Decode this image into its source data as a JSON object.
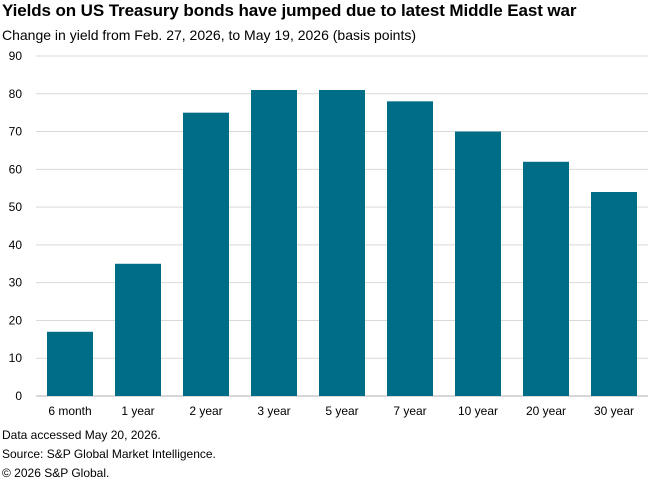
{
  "header": {
    "title": "Yields on US Treasury bonds have jumped due to latest Middle East war",
    "subtitle": "Change in yield from Feb. 27, 2026, to May 19, 2026 (basis points)"
  },
  "footer": {
    "note": "Data accessed May 20, 2026.",
    "source": "Source: S&P Global Market Intelligence.",
    "copyright": "© 2026 S&P Global."
  },
  "colors": {
    "bar": "#006d87",
    "grid": "#d9d9d9"
  },
  "chart_data": {
    "type": "bar",
    "categories": [
      "6 month",
      "1 year",
      "2 year",
      "3 year",
      "5 year",
      "7 year",
      "10 year",
      "20 year",
      "30 year"
    ],
    "values": [
      17,
      35,
      75,
      81,
      81,
      78,
      70,
      62,
      54
    ],
    "title": "Yields on US Treasury bonds have jumped due to latest Middle East war",
    "subtitle": "Change in yield from Feb. 27, 2026, to May 19, 2026 (basis points)",
    "xlabel": "",
    "ylabel": "",
    "ylim": [
      0,
      90
    ],
    "yticks": [
      0,
      10,
      20,
      30,
      40,
      50,
      60,
      70,
      80,
      90
    ],
    "grid": true,
    "legend": "none"
  }
}
